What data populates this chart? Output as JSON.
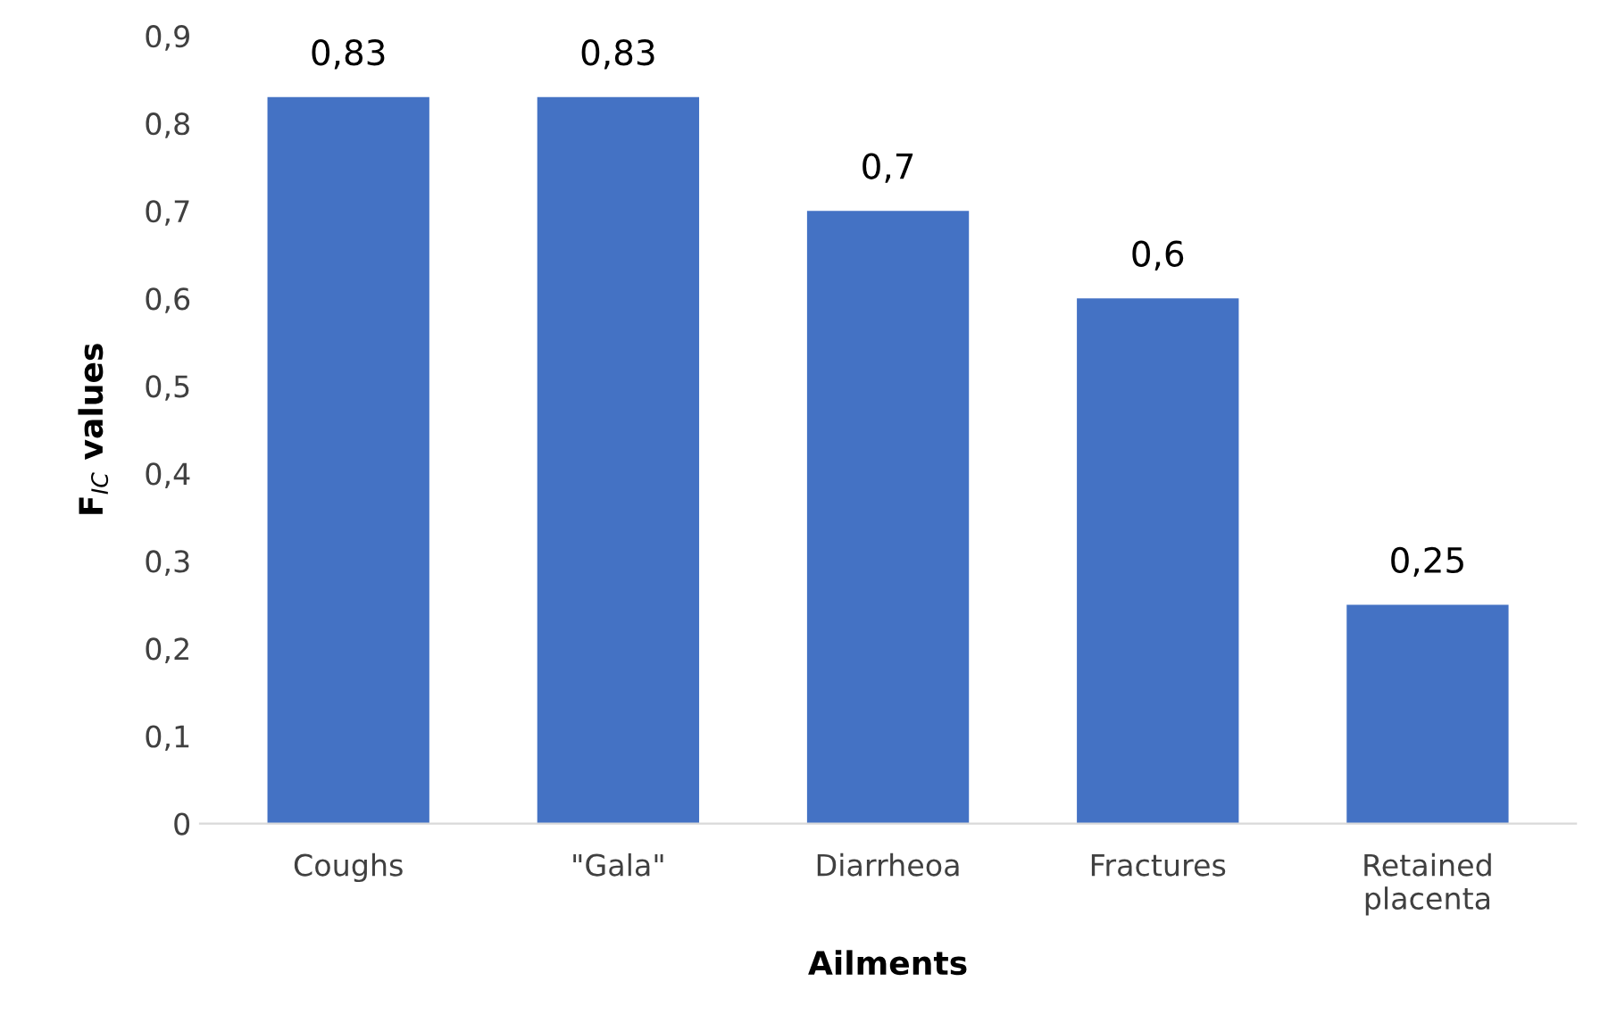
{
  "chart_data": {
    "type": "bar",
    "xlabel": "Ailments",
    "ylabel": "F$_{IC}$ values",
    "categories": [
      "Coughs",
      "\"Gala\"",
      "Diarrheoa",
      "Fractures",
      "Retained\nplacenta"
    ],
    "values": [
      0.83,
      0.83,
      0.7,
      0.6,
      0.25
    ],
    "value_labels": [
      "0,83",
      "0,83",
      "0,7",
      "0,6",
      "0,25"
    ],
    "color": "#4472c4",
    "ylim": [
      0,
      0.9
    ],
    "yticks": [
      0,
      {
        "value": 0.1,
        "label": "0,1"
      },
      {
        "value": 0.2,
        "label": "0,2"
      },
      {
        "value": 0.3,
        "label": "0,3"
      },
      {
        "value": 0.4,
        "label": "0,4"
      },
      {
        "value": 0.5,
        "label": "0,5"
      },
      {
        "value": 0.6,
        "label": "0,6"
      },
      {
        "value": 0.7,
        "label": "0,7"
      },
      {
        "value": 0.8,
        "label": "0,8"
      },
      {
        "value": 0.9,
        "label": "0,9"
      }
    ],
    "grid": false
  }
}
